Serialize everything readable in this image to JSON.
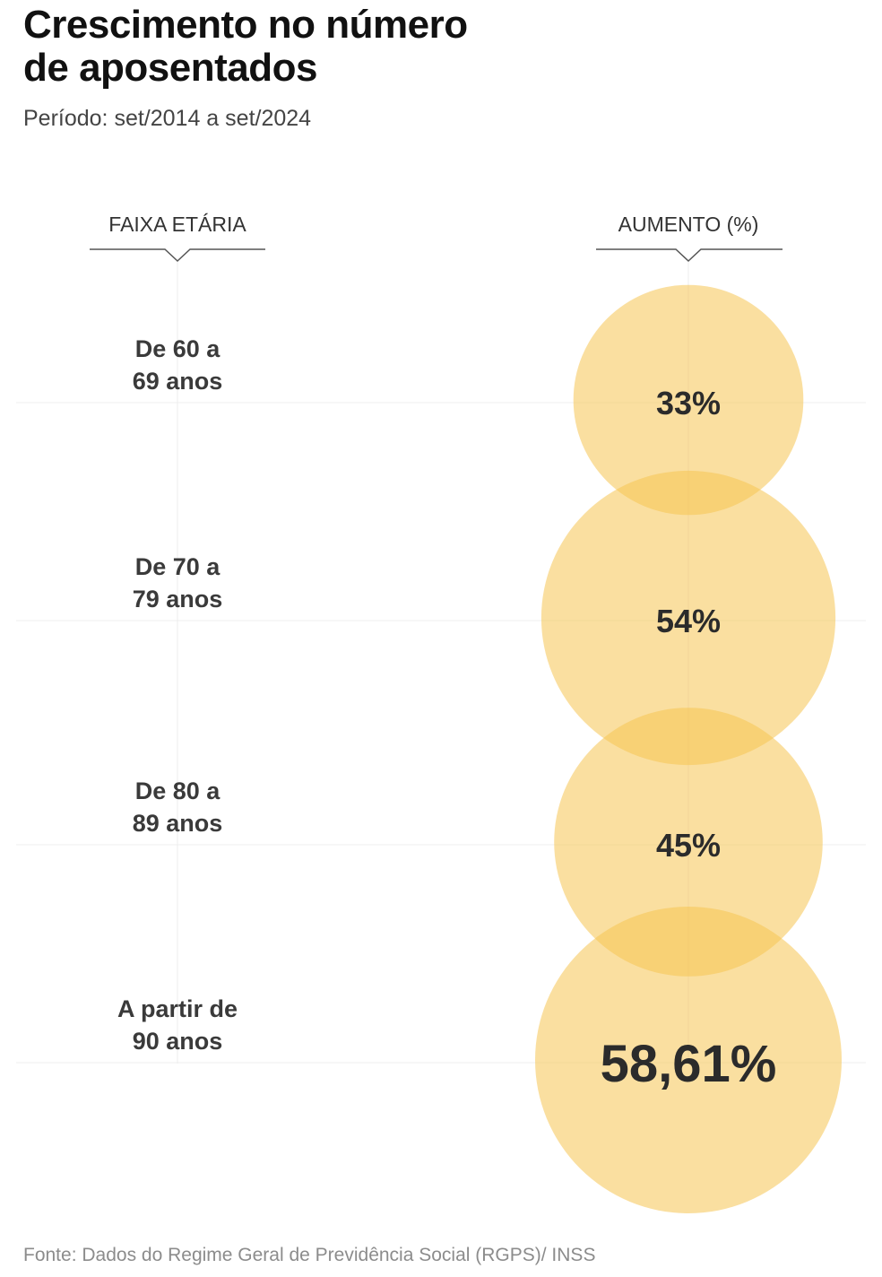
{
  "header": {
    "title_line1": "Crescimento no número",
    "title_line2": "de aposentados",
    "subtitle": "Período: set/2014 a set/2024"
  },
  "columns": {
    "left": "FAIXA ETÁRIA",
    "right": "AUMENTO (%)"
  },
  "source": "Fonte: Dados do Regime Geral de Previdência Social (RGPS)/ INSS",
  "colors": {
    "bubble": "#f5c452",
    "text": "#2b2b2b"
  },
  "chart_data": {
    "type": "bubble",
    "categories": [
      [
        "De 60 a",
        "69 anos"
      ],
      [
        "De 70 a",
        "79 anos"
      ],
      [
        "De 80 a",
        "89 anos"
      ],
      [
        "A partir de",
        "90 anos"
      ]
    ],
    "values": [
      33,
      54,
      45,
      58.61
    ],
    "value_labels": [
      "33%",
      "54%",
      "45%",
      "58,61%"
    ],
    "unit": "%"
  }
}
